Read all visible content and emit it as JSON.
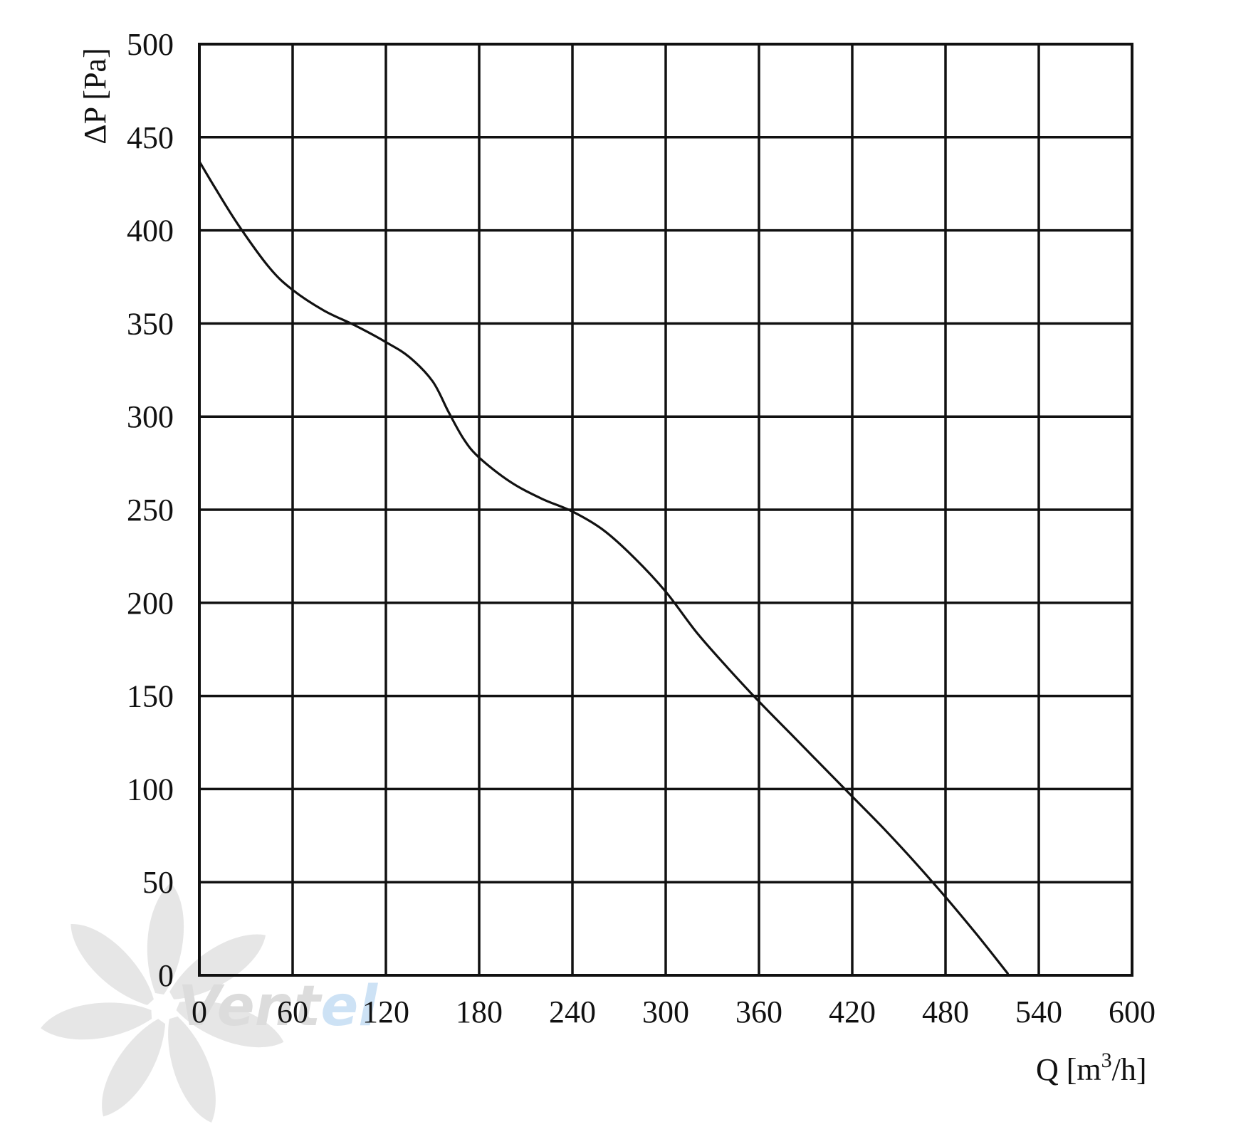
{
  "chart_data": {
    "type": "line",
    "title": "",
    "xlabel": "Q [m³/h]",
    "xlabel_parts": {
      "main": "Q [m",
      "sup": "3",
      "end": "/h]"
    },
    "ylabel": "ΔP [Pa]",
    "xlim": [
      0,
      600
    ],
    "ylim": [
      0,
      500
    ],
    "x_ticks": [
      0,
      60,
      120,
      180,
      240,
      300,
      360,
      420,
      480,
      540,
      600
    ],
    "y_ticks": [
      0,
      50,
      100,
      150,
      200,
      250,
      300,
      350,
      400,
      450,
      500
    ],
    "grid": true,
    "series": [
      {
        "x": [
          0,
          10,
          25,
          45,
          60,
          80,
          100,
          120,
          135,
          150,
          160,
          170,
          180,
          200,
          220,
          240,
          260,
          280,
          300,
          320,
          340,
          360,
          380,
          400,
          420,
          440,
          460,
          480,
          500,
          520
        ],
        "y": [
          437,
          423,
          403,
          380,
          368,
          357,
          349,
          340,
          332,
          319,
          303,
          288,
          278,
          265,
          256,
          249,
          239,
          224,
          206,
          184,
          165,
          147,
          130,
          113,
          96,
          79,
          61,
          42,
          22,
          1
        ]
      }
    ]
  },
  "watermark": {
    "text": "Ventel",
    "color_gray": "#d9d9d9",
    "color_blue": "#c8dff5"
  }
}
